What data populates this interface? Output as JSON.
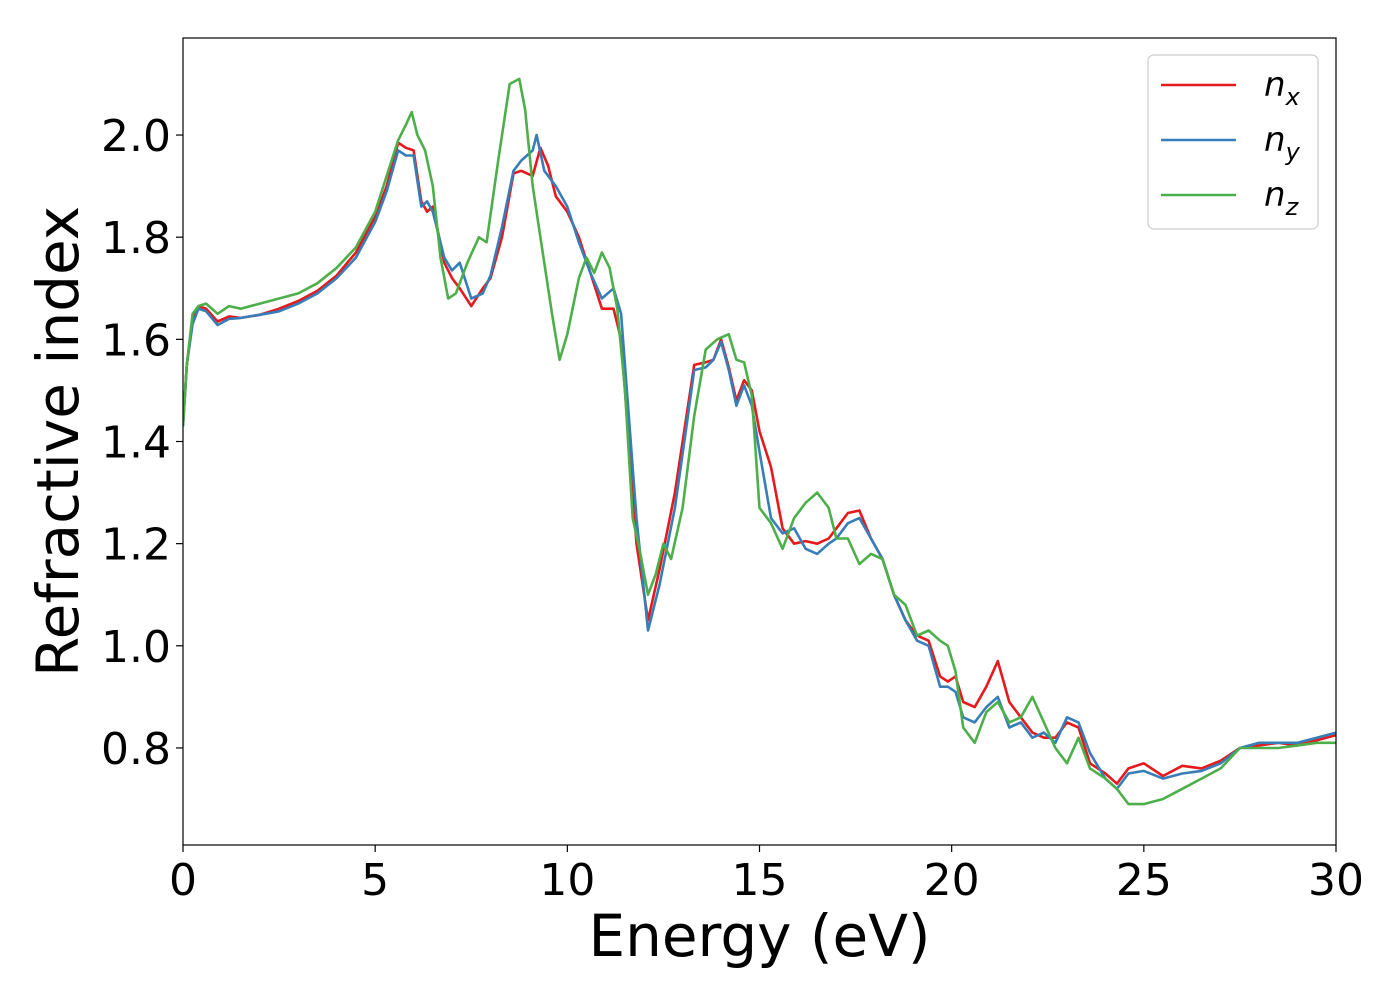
{
  "chart_data": {
    "type": "line",
    "title": "",
    "xlabel": "Energy (eV)",
    "ylabel": "Refractive index",
    "xlim": [
      0,
      30
    ],
    "ylim": [
      0.61,
      2.19
    ],
    "xticks": [
      0,
      5,
      10,
      15,
      20,
      25,
      30
    ],
    "xtick_labels": [
      "0",
      "5",
      "10",
      "15",
      "20",
      "25",
      "30"
    ],
    "yticks": [
      0.8,
      1.0,
      1.2,
      1.4,
      1.6,
      1.8,
      2.0
    ],
    "ytick_labels": [
      "0.8",
      "1.0",
      "1.2",
      "1.4",
      "1.6",
      "1.8",
      "2.0"
    ],
    "grid": false,
    "legend_position": "top-right",
    "series": [
      {
        "name": "n_x",
        "label_base": "n",
        "label_sub": "x",
        "color": "#e41a1c",
        "points": [
          [
            0,
            1.43
          ],
          [
            0.1,
            1.55
          ],
          [
            0.25,
            1.64
          ],
          [
            0.4,
            1.665
          ],
          [
            0.6,
            1.66
          ],
          [
            0.9,
            1.635
          ],
          [
            1.2,
            1.645
          ],
          [
            1.5,
            1.642
          ],
          [
            2,
            1.648
          ],
          [
            2.5,
            1.66
          ],
          [
            3,
            1.675
          ],
          [
            3.5,
            1.695
          ],
          [
            4,
            1.725
          ],
          [
            4.5,
            1.77
          ],
          [
            5,
            1.84
          ],
          [
            5.3,
            1.9
          ],
          [
            5.6,
            1.985
          ],
          [
            5.8,
            1.975
          ],
          [
            6.0,
            1.97
          ],
          [
            6.2,
            1.87
          ],
          [
            6.35,
            1.85
          ],
          [
            6.5,
            1.86
          ],
          [
            6.8,
            1.75
          ],
          [
            7.0,
            1.72
          ],
          [
            7.2,
            1.7
          ],
          [
            7.5,
            1.665
          ],
          [
            7.8,
            1.7
          ],
          [
            8.0,
            1.72
          ],
          [
            8.3,
            1.8
          ],
          [
            8.6,
            1.925
          ],
          [
            8.8,
            1.93
          ],
          [
            9.1,
            1.92
          ],
          [
            9.3,
            1.975
          ],
          [
            9.5,
            1.94
          ],
          [
            9.7,
            1.88
          ],
          [
            10,
            1.85
          ],
          [
            10.3,
            1.8
          ],
          [
            10.6,
            1.73
          ],
          [
            10.9,
            1.66
          ],
          [
            11.2,
            1.66
          ],
          [
            11.4,
            1.6
          ],
          [
            11.6,
            1.4
          ],
          [
            11.8,
            1.2
          ],
          [
            12.1,
            1.05
          ],
          [
            12.4,
            1.15
          ],
          [
            12.8,
            1.3
          ],
          [
            13.1,
            1.45
          ],
          [
            13.3,
            1.55
          ],
          [
            13.6,
            1.555
          ],
          [
            13.8,
            1.56
          ],
          [
            14.0,
            1.6
          ],
          [
            14.2,
            1.545
          ],
          [
            14.4,
            1.48
          ],
          [
            14.6,
            1.52
          ],
          [
            14.8,
            1.5
          ],
          [
            15,
            1.42
          ],
          [
            15.3,
            1.35
          ],
          [
            15.6,
            1.23
          ],
          [
            15.9,
            1.2
          ],
          [
            16.2,
            1.205
          ],
          [
            16.5,
            1.2
          ],
          [
            16.8,
            1.21
          ],
          [
            17.0,
            1.23
          ],
          [
            17.3,
            1.26
          ],
          [
            17.6,
            1.265
          ],
          [
            17.9,
            1.21
          ],
          [
            18.2,
            1.17
          ],
          [
            18.5,
            1.1
          ],
          [
            18.8,
            1.05
          ],
          [
            19.1,
            1.02
          ],
          [
            19.4,
            1.01
          ],
          [
            19.7,
            0.94
          ],
          [
            19.9,
            0.93
          ],
          [
            20.1,
            0.94
          ],
          [
            20.3,
            0.89
          ],
          [
            20.6,
            0.88
          ],
          [
            20.9,
            0.92
          ],
          [
            21.2,
            0.97
          ],
          [
            21.5,
            0.89
          ],
          [
            21.8,
            0.86
          ],
          [
            22.1,
            0.83
          ],
          [
            22.4,
            0.82
          ],
          [
            22.7,
            0.82
          ],
          [
            23.0,
            0.85
          ],
          [
            23.3,
            0.84
          ],
          [
            23.6,
            0.77
          ],
          [
            24.0,
            0.75
          ],
          [
            24.3,
            0.73
          ],
          [
            24.6,
            0.76
          ],
          [
            25.0,
            0.77
          ],
          [
            25.5,
            0.745
          ],
          [
            26,
            0.765
          ],
          [
            26.5,
            0.76
          ],
          [
            27,
            0.775
          ],
          [
            27.5,
            0.8
          ],
          [
            28,
            0.805
          ],
          [
            28.5,
            0.81
          ],
          [
            29,
            0.805
          ],
          [
            29.5,
            0.815
          ],
          [
            30,
            0.825
          ]
        ]
      },
      {
        "name": "n_y",
        "label_base": "n",
        "label_sub": "y",
        "color": "#377eb8",
        "points": [
          [
            0,
            1.43
          ],
          [
            0.1,
            1.55
          ],
          [
            0.25,
            1.63
          ],
          [
            0.4,
            1.66
          ],
          [
            0.6,
            1.655
          ],
          [
            0.9,
            1.628
          ],
          [
            1.2,
            1.64
          ],
          [
            1.5,
            1.642
          ],
          [
            2,
            1.648
          ],
          [
            2.5,
            1.655
          ],
          [
            3,
            1.67
          ],
          [
            3.5,
            1.69
          ],
          [
            4,
            1.72
          ],
          [
            4.5,
            1.76
          ],
          [
            5,
            1.83
          ],
          [
            5.3,
            1.89
          ],
          [
            5.6,
            1.97
          ],
          [
            5.8,
            1.96
          ],
          [
            6.0,
            1.96
          ],
          [
            6.2,
            1.86
          ],
          [
            6.35,
            1.87
          ],
          [
            6.5,
            1.85
          ],
          [
            6.8,
            1.76
          ],
          [
            7.0,
            1.735
          ],
          [
            7.2,
            1.75
          ],
          [
            7.5,
            1.68
          ],
          [
            7.8,
            1.69
          ],
          [
            8.0,
            1.725
          ],
          [
            8.3,
            1.82
          ],
          [
            8.6,
            1.93
          ],
          [
            8.8,
            1.95
          ],
          [
            9.1,
            1.97
          ],
          [
            9.2,
            2.0
          ],
          [
            9.4,
            1.93
          ],
          [
            9.7,
            1.9
          ],
          [
            10,
            1.86
          ],
          [
            10.3,
            1.79
          ],
          [
            10.6,
            1.73
          ],
          [
            10.9,
            1.68
          ],
          [
            11.2,
            1.7
          ],
          [
            11.4,
            1.65
          ],
          [
            11.6,
            1.45
          ],
          [
            11.8,
            1.25
          ],
          [
            12.1,
            1.03
          ],
          [
            12.4,
            1.12
          ],
          [
            12.8,
            1.27
          ],
          [
            13.1,
            1.43
          ],
          [
            13.3,
            1.54
          ],
          [
            13.6,
            1.545
          ],
          [
            13.8,
            1.56
          ],
          [
            14.0,
            1.595
          ],
          [
            14.2,
            1.54
          ],
          [
            14.4,
            1.47
          ],
          [
            14.6,
            1.51
          ],
          [
            14.8,
            1.47
          ],
          [
            15,
            1.38
          ],
          [
            15.3,
            1.25
          ],
          [
            15.6,
            1.22
          ],
          [
            15.9,
            1.23
          ],
          [
            16.2,
            1.19
          ],
          [
            16.5,
            1.18
          ],
          [
            16.8,
            1.2
          ],
          [
            17.0,
            1.21
          ],
          [
            17.3,
            1.24
          ],
          [
            17.6,
            1.25
          ],
          [
            17.9,
            1.21
          ],
          [
            18.2,
            1.17
          ],
          [
            18.5,
            1.1
          ],
          [
            18.8,
            1.05
          ],
          [
            19.1,
            1.01
          ],
          [
            19.4,
            1.0
          ],
          [
            19.7,
            0.92
          ],
          [
            19.9,
            0.92
          ],
          [
            20.1,
            0.91
          ],
          [
            20.3,
            0.86
          ],
          [
            20.6,
            0.85
          ],
          [
            20.9,
            0.88
          ],
          [
            21.2,
            0.9
          ],
          [
            21.5,
            0.84
          ],
          [
            21.8,
            0.85
          ],
          [
            22.1,
            0.82
          ],
          [
            22.4,
            0.83
          ],
          [
            22.7,
            0.81
          ],
          [
            23.0,
            0.86
          ],
          [
            23.3,
            0.85
          ],
          [
            23.6,
            0.79
          ],
          [
            24.0,
            0.74
          ],
          [
            24.3,
            0.72
          ],
          [
            24.6,
            0.75
          ],
          [
            25.0,
            0.755
          ],
          [
            25.5,
            0.74
          ],
          [
            26,
            0.75
          ],
          [
            26.5,
            0.755
          ],
          [
            27,
            0.77
          ],
          [
            27.5,
            0.8
          ],
          [
            28,
            0.81
          ],
          [
            28.5,
            0.81
          ],
          [
            29,
            0.81
          ],
          [
            29.5,
            0.82
          ],
          [
            30,
            0.83
          ]
        ]
      },
      {
        "name": "n_z",
        "label_base": "n",
        "label_sub": "z",
        "color": "#4daf4a",
        "points": [
          [
            0,
            1.43
          ],
          [
            0.1,
            1.55
          ],
          [
            0.25,
            1.65
          ],
          [
            0.4,
            1.665
          ],
          [
            0.6,
            1.67
          ],
          [
            0.9,
            1.65
          ],
          [
            1.2,
            1.665
          ],
          [
            1.5,
            1.66
          ],
          [
            2,
            1.67
          ],
          [
            2.5,
            1.68
          ],
          [
            3,
            1.69
          ],
          [
            3.5,
            1.71
          ],
          [
            4,
            1.74
          ],
          [
            4.5,
            1.78
          ],
          [
            5,
            1.85
          ],
          [
            5.3,
            1.92
          ],
          [
            5.6,
            1.99
          ],
          [
            5.8,
            2.02
          ],
          [
            5.95,
            2.045
          ],
          [
            6.1,
            2.0
          ],
          [
            6.3,
            1.97
          ],
          [
            6.5,
            1.9
          ],
          [
            6.7,
            1.76
          ],
          [
            6.9,
            1.68
          ],
          [
            7.1,
            1.69
          ],
          [
            7.4,
            1.75
          ],
          [
            7.7,
            1.8
          ],
          [
            7.9,
            1.79
          ],
          [
            8.2,
            1.95
          ],
          [
            8.5,
            2.1
          ],
          [
            8.75,
            2.11
          ],
          [
            8.9,
            2.05
          ],
          [
            9.1,
            1.9
          ],
          [
            9.3,
            1.8
          ],
          [
            9.6,
            1.65
          ],
          [
            9.8,
            1.56
          ],
          [
            10.0,
            1.61
          ],
          [
            10.3,
            1.72
          ],
          [
            10.5,
            1.76
          ],
          [
            10.7,
            1.73
          ],
          [
            10.9,
            1.77
          ],
          [
            11.1,
            1.74
          ],
          [
            11.3,
            1.66
          ],
          [
            11.5,
            1.5
          ],
          [
            11.7,
            1.25
          ],
          [
            11.9,
            1.18
          ],
          [
            12.1,
            1.1
          ],
          [
            12.3,
            1.14
          ],
          [
            12.5,
            1.2
          ],
          [
            12.7,
            1.17
          ],
          [
            13.0,
            1.27
          ],
          [
            13.3,
            1.45
          ],
          [
            13.6,
            1.58
          ],
          [
            13.9,
            1.6
          ],
          [
            14.2,
            1.61
          ],
          [
            14.4,
            1.56
          ],
          [
            14.6,
            1.555
          ],
          [
            14.8,
            1.49
          ],
          [
            15,
            1.27
          ],
          [
            15.3,
            1.24
          ],
          [
            15.6,
            1.19
          ],
          [
            15.9,
            1.25
          ],
          [
            16.2,
            1.28
          ],
          [
            16.5,
            1.3
          ],
          [
            16.8,
            1.27
          ],
          [
            17.0,
            1.21
          ],
          [
            17.3,
            1.21
          ],
          [
            17.6,
            1.16
          ],
          [
            17.9,
            1.18
          ],
          [
            18.2,
            1.17
          ],
          [
            18.5,
            1.1
          ],
          [
            18.8,
            1.08
          ],
          [
            19.1,
            1.02
          ],
          [
            19.4,
            1.03
          ],
          [
            19.7,
            1.01
          ],
          [
            19.9,
            1.0
          ],
          [
            20.1,
            0.95
          ],
          [
            20.3,
            0.84
          ],
          [
            20.6,
            0.81
          ],
          [
            20.9,
            0.87
          ],
          [
            21.2,
            0.89
          ],
          [
            21.5,
            0.85
          ],
          [
            21.8,
            0.86
          ],
          [
            22.1,
            0.9
          ],
          [
            22.4,
            0.85
          ],
          [
            22.7,
            0.8
          ],
          [
            23.0,
            0.77
          ],
          [
            23.3,
            0.82
          ],
          [
            23.6,
            0.76
          ],
          [
            24.0,
            0.74
          ],
          [
            24.3,
            0.72
          ],
          [
            24.6,
            0.69
          ],
          [
            25.0,
            0.69
          ],
          [
            25.5,
            0.7
          ],
          [
            26,
            0.72
          ],
          [
            26.5,
            0.74
          ],
          [
            27,
            0.76
          ],
          [
            27.5,
            0.8
          ],
          [
            28,
            0.8
          ],
          [
            28.5,
            0.8
          ],
          [
            29,
            0.805
          ],
          [
            29.5,
            0.81
          ],
          [
            30,
            0.81
          ]
        ]
      }
    ]
  }
}
